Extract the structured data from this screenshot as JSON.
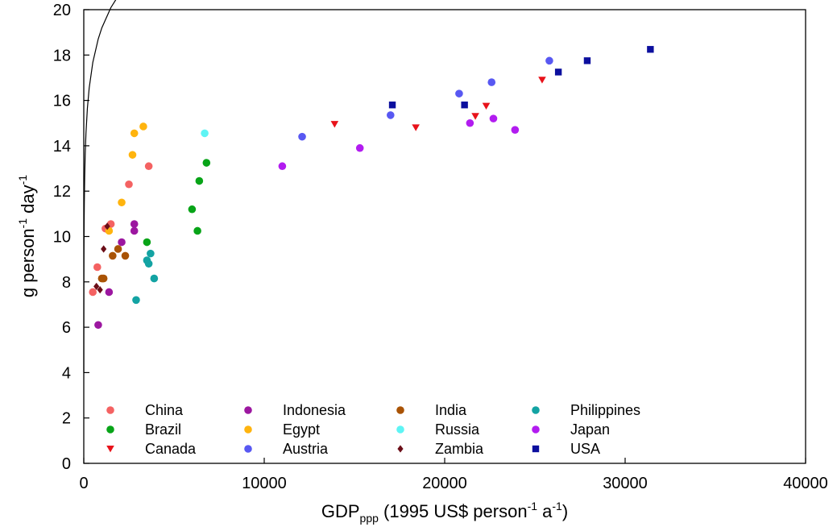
{
  "chart_data": {
    "type": "scatter",
    "title": "",
    "xlabel": {
      "main": "GDP",
      "sub": "ppp",
      "rest1": " (1995 US$ person",
      "sup1": "-1",
      "rest2": " a",
      "sup2": "-1",
      "rest3": ")"
    },
    "ylabel": {
      "p1": "g person",
      "sup1": "-1",
      "p2": " day",
      "sup2": "-1"
    },
    "xlim": [
      0,
      40000
    ],
    "ylim": [
      0,
      20
    ],
    "xticks": [
      "0",
      "10000",
      "20000",
      "30000",
      "40000"
    ],
    "yticks": [
      "0",
      "2",
      "4",
      "6",
      "8",
      "10",
      "12",
      "14",
      "16",
      "18",
      "20"
    ],
    "xtick_values": [
      0,
      10000,
      20000,
      30000,
      40000
    ],
    "ytick_values": [
      0,
      2,
      4,
      6,
      8,
      10,
      12,
      14,
      16,
      18,
      20
    ],
    "grid": false,
    "legend_position": "bottom-left",
    "fit_curve": {
      "type": "logarithmic",
      "a": 4.0,
      "b": 2.2
    },
    "series": [
      {
        "name": "China",
        "color": "#f46262",
        "marker": "circle",
        "points": [
          [
            500,
            7.55
          ],
          [
            750,
            8.65
          ],
          [
            1200,
            10.35
          ],
          [
            1500,
            10.55
          ],
          [
            2500,
            12.3
          ],
          [
            3600,
            13.1
          ]
        ]
      },
      {
        "name": "Brazil",
        "color": "#08a418",
        "marker": "circle",
        "points": [
          [
            3500,
            9.75
          ],
          [
            6000,
            11.2
          ],
          [
            6300,
            10.25
          ],
          [
            6400,
            12.45
          ],
          [
            6800,
            13.25
          ]
        ]
      },
      {
        "name": "Canada",
        "color": "#e8121a",
        "marker": "triangle-down",
        "points": [
          [
            13900,
            14.95
          ],
          [
            18400,
            14.8
          ],
          [
            21700,
            15.3
          ],
          [
            22300,
            15.75
          ],
          [
            25400,
            16.9
          ]
        ]
      },
      {
        "name": "Indonesia",
        "color": "#9c17a0",
        "marker": "circle",
        "points": [
          [
            800,
            6.1
          ],
          [
            1400,
            7.55
          ],
          [
            2100,
            9.75
          ],
          [
            2800,
            10.25
          ],
          [
            2800,
            10.55
          ]
        ]
      },
      {
        "name": "Egypt",
        "color": "#ffb40e",
        "marker": "circle",
        "points": [
          [
            1400,
            10.25
          ],
          [
            2100,
            11.5
          ],
          [
            2700,
            13.6
          ],
          [
            2800,
            14.55
          ],
          [
            3300,
            14.85
          ]
        ]
      },
      {
        "name": "Austria",
        "color": "#5858f2",
        "marker": "circle",
        "points": [
          [
            12100,
            14.4
          ],
          [
            17000,
            15.35
          ],
          [
            20800,
            16.3
          ],
          [
            22600,
            16.8
          ],
          [
            25800,
            17.75
          ]
        ]
      },
      {
        "name": "India",
        "color": "#a95305",
        "marker": "circle",
        "points": [
          [
            1000,
            8.15
          ],
          [
            1100,
            8.15
          ],
          [
            1600,
            9.15
          ],
          [
            1900,
            9.45
          ],
          [
            2300,
            9.15
          ]
        ]
      },
      {
        "name": "Russia",
        "color": "#5ef4f4",
        "marker": "circle",
        "points": [
          [
            6700,
            14.55
          ]
        ]
      },
      {
        "name": "Zambia",
        "color": "#6b0e18",
        "marker": "diamond",
        "points": [
          [
            700,
            7.8
          ],
          [
            900,
            7.65
          ],
          [
            1100,
            9.45
          ],
          [
            1300,
            10.45
          ]
        ]
      },
      {
        "name": "Philippines",
        "color": "#13a3a3",
        "marker": "circle",
        "points": [
          [
            2900,
            7.2
          ],
          [
            3500,
            8.95
          ],
          [
            3600,
            8.8
          ],
          [
            3700,
            9.25
          ],
          [
            3900,
            8.15
          ]
        ]
      },
      {
        "name": "Japan",
        "color": "#b21cf0",
        "marker": "circle",
        "points": [
          [
            11000,
            13.1
          ],
          [
            15300,
            13.9
          ],
          [
            21400,
            15.0
          ],
          [
            22700,
            15.2
          ],
          [
            23900,
            14.7
          ]
        ]
      },
      {
        "name": "USA",
        "color": "#0c0f9e",
        "marker": "square",
        "points": [
          [
            17100,
            15.8
          ],
          [
            21100,
            15.8
          ],
          [
            26300,
            17.25
          ],
          [
            27900,
            17.75
          ],
          [
            31400,
            18.25
          ]
        ]
      }
    ]
  }
}
